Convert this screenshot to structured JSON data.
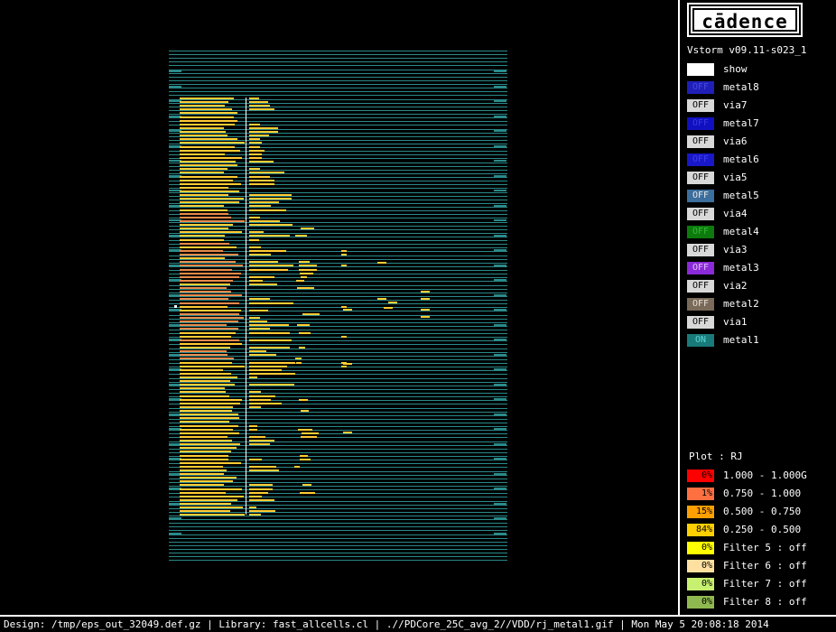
{
  "app": {
    "logo": "cādence",
    "version": "Vstorm v09.11-s023_1"
  },
  "layers": [
    {
      "chip": "",
      "name": "show",
      "chip_bg": "#ffffff",
      "chip_fg": "#000000"
    },
    {
      "chip": "OFF",
      "name": "metal8",
      "chip_bg": "#1f1fb8",
      "chip_fg": "#4a4ae0"
    },
    {
      "chip": "OFF",
      "name": "via7",
      "chip_bg": "#d8d8d8",
      "chip_fg": "#000000"
    },
    {
      "chip": "OFF",
      "name": "metal7",
      "chip_bg": "#1010c0",
      "chip_fg": "#3a3ae0"
    },
    {
      "chip": "OFF",
      "name": "via6",
      "chip_bg": "#d8d8d8",
      "chip_fg": "#000000"
    },
    {
      "chip": "OFF",
      "name": "metal6",
      "chip_bg": "#1818c8",
      "chip_fg": "#4040e8"
    },
    {
      "chip": "OFF",
      "name": "via5",
      "chip_bg": "#d8d8d8",
      "chip_fg": "#000000"
    },
    {
      "chip": "OFF",
      "name": "metal5",
      "chip_bg": "#3c6e9e",
      "chip_fg": "#e8e8e8"
    },
    {
      "chip": "OFF",
      "name": "via4",
      "chip_bg": "#d8d8d8",
      "chip_fg": "#000000"
    },
    {
      "chip": "OFF",
      "name": "metal4",
      "chip_bg": "#0c7a0c",
      "chip_fg": "#38b838"
    },
    {
      "chip": "OFF",
      "name": "via3",
      "chip_bg": "#d8d8d8",
      "chip_fg": "#000000"
    },
    {
      "chip": "OFF",
      "name": "metal3",
      "chip_bg": "#8a2ad8",
      "chip_fg": "#e0c0ff"
    },
    {
      "chip": "OFF",
      "name": "via2",
      "chip_bg": "#d8d8d8",
      "chip_fg": "#000000"
    },
    {
      "chip": "OFF",
      "name": "metal2",
      "chip_bg": "#7a6a5a",
      "chip_fg": "#e8e0d8"
    },
    {
      "chip": "OFF",
      "name": "via1",
      "chip_bg": "#d8d8d8",
      "chip_fg": "#000000"
    },
    {
      "chip": "ON",
      "name": "metal1",
      "chip_bg": "#1a7a7a",
      "chip_fg": "#5ad8d8"
    }
  ],
  "plot": {
    "label": "Plot : RJ",
    "legend": [
      {
        "pct": "0%",
        "range": "1.000 - 1.000G",
        "color": "#ff0000"
      },
      {
        "pct": "1%",
        "range": "0.750 - 1.000",
        "color": "#ff7040"
      },
      {
        "pct": "15%",
        "range": "0.500 - 0.750",
        "color": "#ffa000"
      },
      {
        "pct": "84%",
        "range": "0.250 - 0.500",
        "color": "#ffd000"
      },
      {
        "pct": "0%",
        "range": "Filter 5 : off",
        "color": "#ffff00"
      },
      {
        "pct": "0%",
        "range": "Filter 6 : off",
        "color": "#ffe0a0"
      },
      {
        "pct": "0%",
        "range": "Filter 7 : off",
        "color": "#c8f070"
      },
      {
        "pct": "0%",
        "range": "Filter 8 : off",
        "color": "#90b850"
      }
    ]
  },
  "colors": {
    "rail": "#2a8a8a",
    "cell": "#ffcc33",
    "hot": "#e88a4a"
  },
  "status": "Design: /tmp/eps_out_32049.def.gz | Library: fast_allcells.cl | .//PDCore_25C_avg_2//VDD/rj_metal1.gif | Mon May  5 20:08:18 2014"
}
